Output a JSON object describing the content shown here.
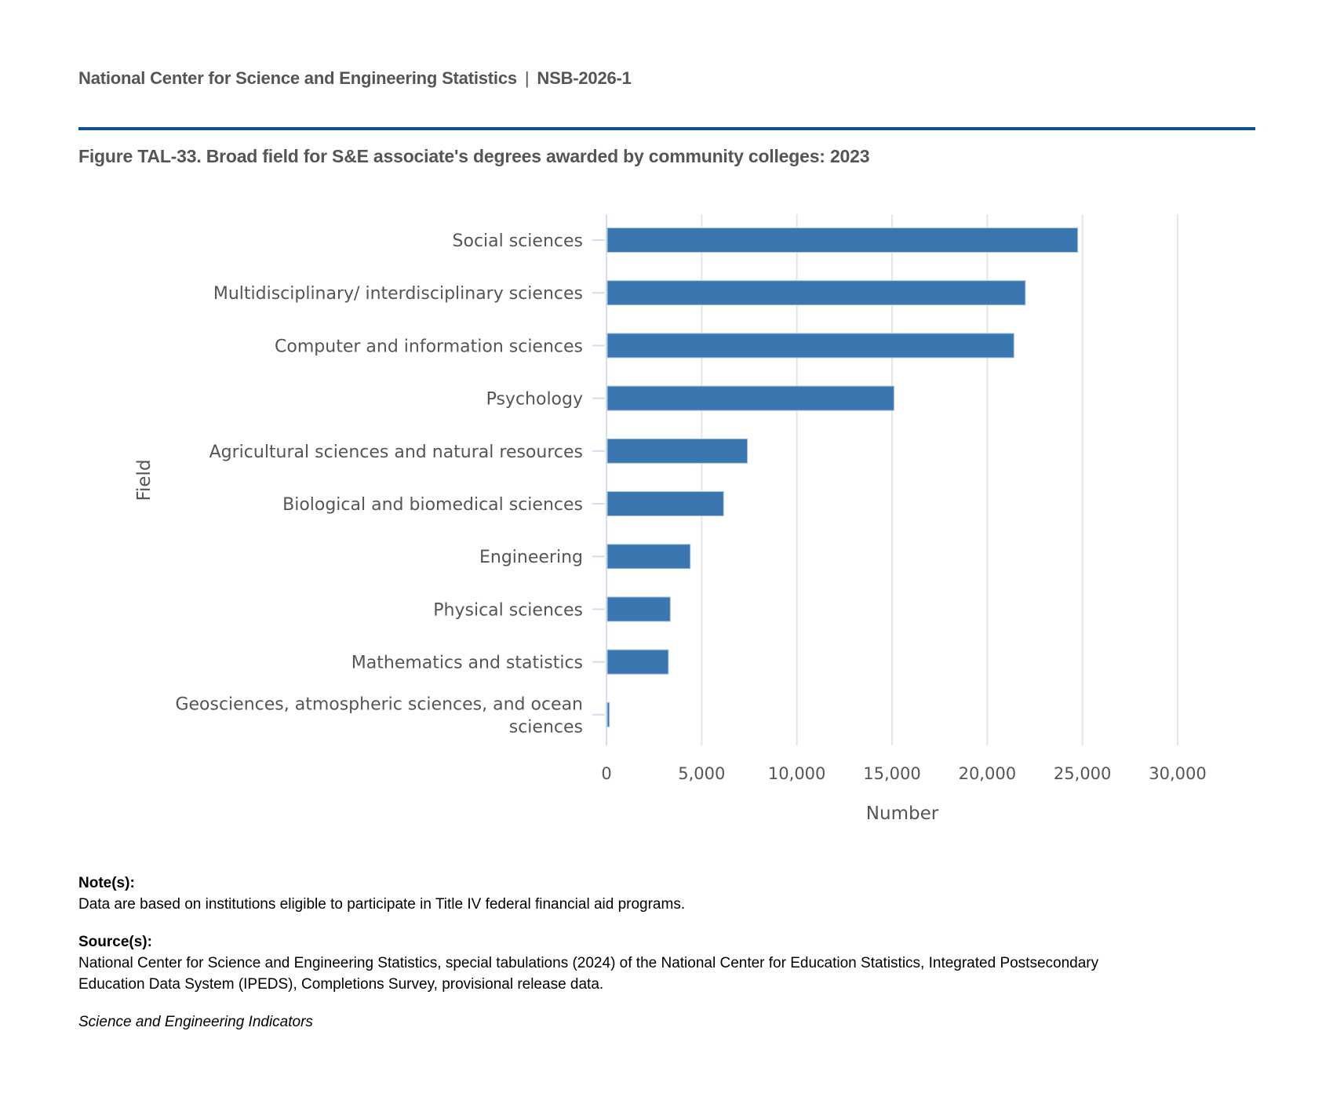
{
  "header": {
    "org": "National Center for Science and Engineering Statistics",
    "separator": "|",
    "report_id": "NSB-2026-1",
    "rule_color": "#0a5192"
  },
  "figure": {
    "title": "Figure TAL-33. Broad field for S&E associate's degrees awarded by community colleges: 2023"
  },
  "chart_data": {
    "type": "bar",
    "orientation": "horizontal",
    "title": "Figure TAL-33. Broad field for S&E associate's degrees awarded by community colleges: 2023",
    "xlabel": "Number",
    "ylabel": "Field",
    "xlim": [
      0,
      32000
    ],
    "xticks": [
      0,
      5000,
      10000,
      15000,
      20000,
      25000,
      30000
    ],
    "xtick_labels": [
      "0",
      "5,000",
      "10,000",
      "15,000",
      "20,000",
      "25,000",
      "30,000"
    ],
    "grid": "vertical",
    "bar_color": "#3a77b0",
    "categories": [
      [
        "Social sciences"
      ],
      [
        "Multidisciplinary/ interdisciplinary sciences"
      ],
      [
        "Computer and information sciences"
      ],
      [
        "Psychology"
      ],
      [
        "Agricultural sciences and natural resources"
      ],
      [
        "Biological and biomedical sciences"
      ],
      [
        "Engineering"
      ],
      [
        "Physical sciences"
      ],
      [
        "Mathematics and statistics"
      ],
      [
        "Geosciences, atmospheric sciences, and ocean",
        "sciences"
      ]
    ],
    "values": [
      24750,
      22000,
      21400,
      15100,
      7400,
      6150,
      4400,
      3350,
      3250,
      150
    ]
  },
  "notes": {
    "note_label": "Note(s):",
    "note_text": "Data are based on institutions eligible to participate in Title IV federal financial aid programs.",
    "source_label": "Source(s):",
    "source_line1": "National Center for Science and Engineering Statistics, special tabulations (2024) of the National Center for Education Statistics, Integrated Postsecondary",
    "source_line2": "Education Data System (IPEDS), Completions Survey, provisional release data.",
    "publication": "Science and Engineering Indicators"
  }
}
